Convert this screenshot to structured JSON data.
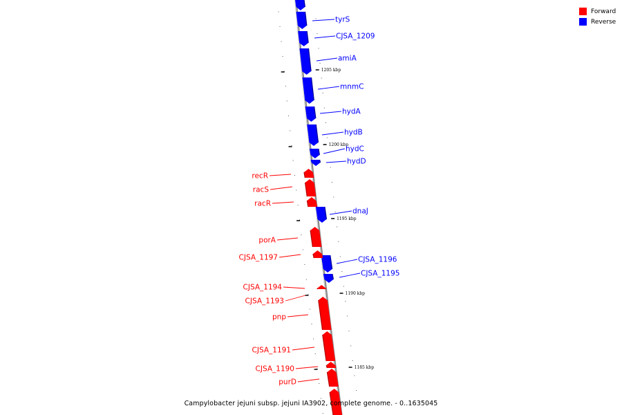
{
  "caption": "Campylobacter jejuni subsp. jejuni IA3902, complete genome. - 0..1635045",
  "legend": [
    {
      "label": "Forward",
      "color": "#ff0000"
    },
    {
      "label": "Reverse",
      "color": "#0000ff"
    }
  ],
  "colors": {
    "forward": "#ff0000",
    "forward_dark": "#b40000",
    "reverse": "#0000ff",
    "reverse_dark": "#00009a",
    "backbone": "#8a8a8a"
  },
  "tick_labels": [
    "1205 kbp",
    "1200 kbp",
    "1195 kbp",
    "1190 kbp",
    "1185 kbp"
  ],
  "genes_reverse": [
    "tyrS",
    "CJSA_1209",
    "amiA",
    "mnmC",
    "hydA",
    "hydB",
    "hydC",
    "hydD",
    "dnaJ",
    "CJSA_1196",
    "CJSA_1195"
  ],
  "genes_forward": [
    "recR",
    "racS",
    "racR",
    "porA",
    "CJSA_1197",
    "CJSA_1194",
    "CJSA_1193",
    "pnp",
    "CJSA_1191",
    "CJSA_1190",
    "purD"
  ]
}
